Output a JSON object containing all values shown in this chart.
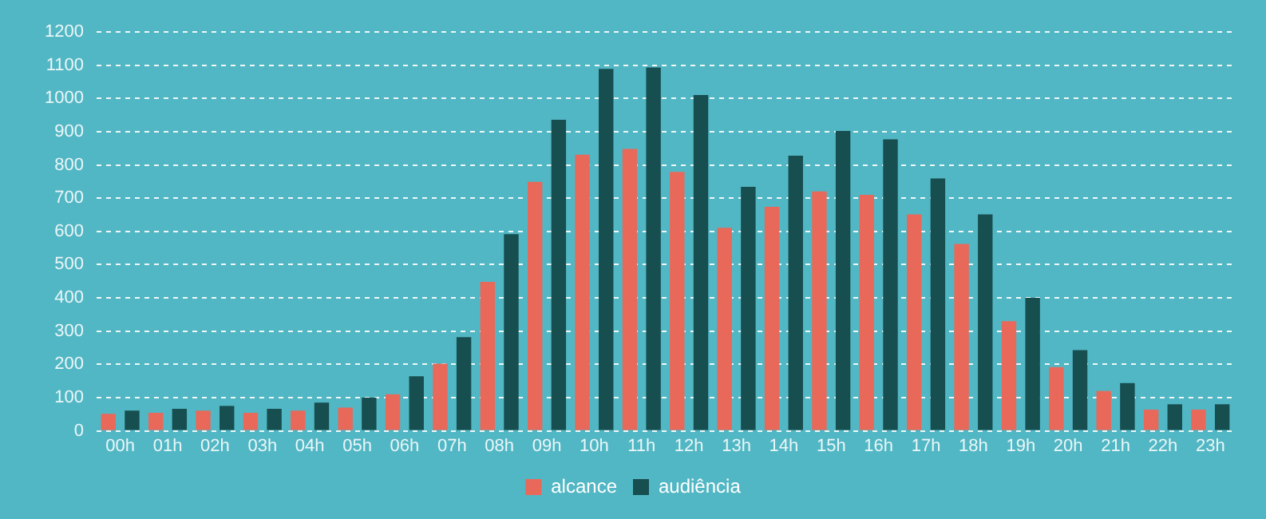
{
  "chart_data": {
    "type": "bar",
    "categories": [
      "00h",
      "01h",
      "02h",
      "03h",
      "04h",
      "05h",
      "06h",
      "07h",
      "08h",
      "09h",
      "10h",
      "11h",
      "12h",
      "13h",
      "14h",
      "15h",
      "16h",
      "17h",
      "18h",
      "19h",
      "20h",
      "21h",
      "22h",
      "23h"
    ],
    "series": [
      {
        "name": "alcance",
        "color": "#e8695a",
        "values": [
          51,
          54,
          61,
          54,
          61,
          70,
          110,
          202,
          448,
          749,
          831,
          848,
          779,
          611,
          674,
          720,
          710,
          651,
          562,
          330,
          192,
          120,
          64,
          64
        ]
      },
      {
        "name": "audiência",
        "color": "#174e50",
        "values": [
          61,
          66,
          75,
          66,
          85,
          100,
          164,
          282,
          592,
          936,
          1089,
          1093,
          1010,
          734,
          828,
          902,
          877,
          759,
          651,
          400,
          243,
          144,
          80,
          80
        ]
      }
    ],
    "ylim": [
      0,
      1200
    ],
    "yticks": [
      0,
      100,
      200,
      300,
      400,
      500,
      600,
      700,
      800,
      900,
      1000,
      1100,
      1200
    ],
    "grid": "y",
    "legend": "bottom"
  }
}
